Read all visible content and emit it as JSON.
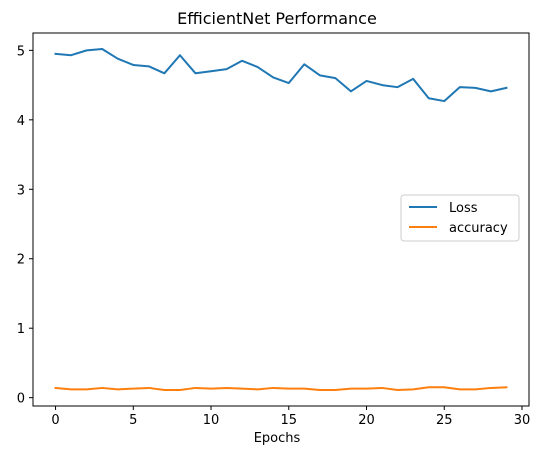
{
  "chart_data": {
    "type": "line",
    "title": "EfficientNet Performance",
    "xlabel": "Epochs",
    "ylabel": "",
    "xlim": [
      -1.45,
      30.45
    ],
    "ylim": [
      -0.12,
      5.25
    ],
    "xticks": [
      0,
      5,
      10,
      15,
      20,
      25,
      30
    ],
    "yticks": [
      0,
      1,
      2,
      3,
      4,
      5
    ],
    "grid": false,
    "legend_position": "center-right",
    "x": [
      0,
      1,
      2,
      3,
      4,
      5,
      6,
      7,
      8,
      9,
      10,
      11,
      12,
      13,
      14,
      15,
      16,
      17,
      18,
      19,
      20,
      21,
      22,
      23,
      24,
      25,
      26,
      27,
      28,
      29
    ],
    "series": [
      {
        "name": "Loss",
        "color": "#1f77b4",
        "values": [
          4.95,
          4.93,
          5.0,
          5.02,
          4.88,
          4.79,
          4.77,
          4.67,
          4.93,
          4.67,
          4.7,
          4.73,
          4.85,
          4.76,
          4.61,
          4.53,
          4.8,
          4.64,
          4.6,
          4.41,
          4.56,
          4.5,
          4.47,
          4.59,
          4.31,
          4.27,
          4.47,
          4.46,
          4.41,
          4.46
        ]
      },
      {
        "name": "accuracy",
        "color": "#ff7f0e",
        "values": [
          0.14,
          0.12,
          0.12,
          0.14,
          0.12,
          0.13,
          0.14,
          0.11,
          0.11,
          0.14,
          0.13,
          0.14,
          0.13,
          0.12,
          0.14,
          0.13,
          0.13,
          0.11,
          0.11,
          0.13,
          0.13,
          0.14,
          0.11,
          0.12,
          0.15,
          0.15,
          0.12,
          0.12,
          0.14,
          0.15
        ]
      }
    ]
  }
}
